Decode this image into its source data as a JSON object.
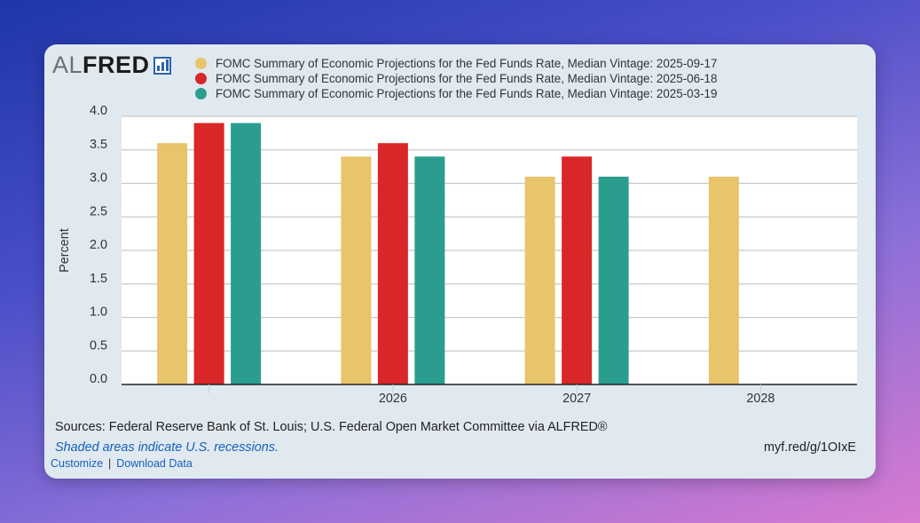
{
  "logo": {
    "part1": "AL",
    "part2": "FRED"
  },
  "chart_data": {
    "type": "bar",
    "categories": [
      "",
      "2026",
      "2027",
      "2028"
    ],
    "series": [
      {
        "name": "FOMC Summary of Economic Projections for the Fed Funds Rate, Median Vintage: 2025-09-17",
        "color": "#e8c46a",
        "values": [
          3.6,
          3.4,
          3.1,
          3.1
        ]
      },
      {
        "name": "FOMC Summary of Economic Projections for the Fed Funds Rate, Median Vintage: 2025-06-18",
        "color": "#d92628",
        "values": [
          3.9,
          3.6,
          3.4,
          null
        ]
      },
      {
        "name": "FOMC Summary of Economic Projections for the Fed Funds Rate, Median Vintage: 2025-03-19",
        "color": "#2a9d8f",
        "values": [
          3.9,
          3.4,
          3.1,
          null
        ]
      }
    ],
    "ylabel": "Percent",
    "ylim": [
      0,
      4.0
    ],
    "yticks": [
      "0.0",
      "0.5",
      "1.0",
      "1.5",
      "2.0",
      "2.5",
      "3.0",
      "3.5",
      "4.0"
    ],
    "grid": true,
    "legend": "top"
  },
  "footer": {
    "sources": "Sources: Federal Reserve Bank of St. Louis; U.S. Federal Open Market Committee via ALFRED®",
    "recession_note": "Shaded areas indicate U.S. recessions.",
    "short_url": "myf.red/g/1OIxE",
    "customize_link": "Customize",
    "separator": "|",
    "download_link": "Download Data"
  }
}
